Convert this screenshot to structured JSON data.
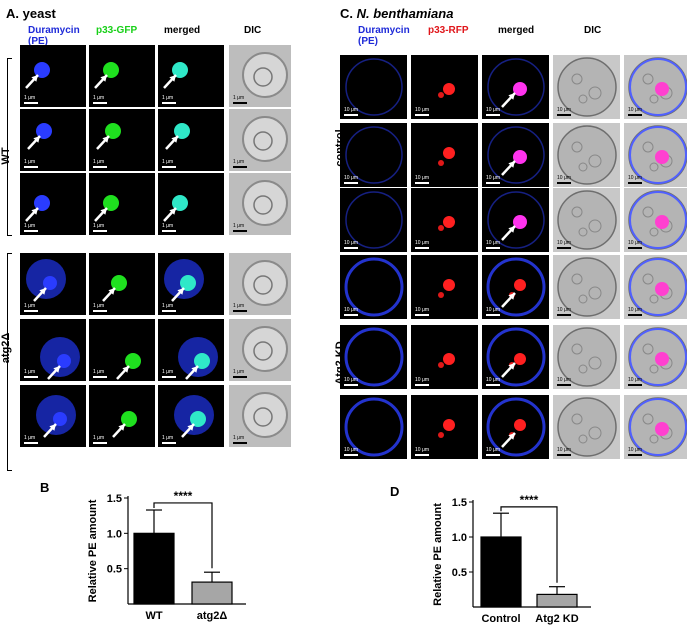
{
  "panel_a": {
    "letter": "A.",
    "title": "yeast",
    "columns": [
      "Duramycin (PE)",
      "p33-GFP",
      "merged",
      "DIC"
    ],
    "column_colors": [
      "#1f2bd8",
      "#18d018",
      "#000000",
      "#000000"
    ],
    "row_groups": [
      "WT",
      "atg2Δ"
    ],
    "scale_label": "1 μm"
  },
  "panel_c": {
    "letter": "C.",
    "title": "N. benthamiana",
    "columns": [
      "Duramycin (PE)",
      "p33-RFP",
      "merged",
      "DIC",
      ""
    ],
    "column_colors": [
      "#1f2bd8",
      "#e0161b",
      "#000000",
      "#000000",
      "#000000"
    ],
    "row_groups": [
      "control",
      "Atg2  KD"
    ],
    "scale_label": "10 μm"
  },
  "chart_data": [
    {
      "letter": "B",
      "type": "bar",
      "categories": [
        "WT",
        "atg2Δ"
      ],
      "values": [
        1.0,
        0.31
      ],
      "errors": [
        0.33,
        0.14
      ],
      "bar_colors": [
        "#000000",
        "#a6a6a6"
      ],
      "ylabel": "Relative PE amount",
      "ylim": [
        0,
        1.5
      ],
      "yticks": [
        "0.5",
        "1.0",
        "1.5"
      ],
      "significance": "****"
    },
    {
      "letter": "D",
      "type": "bar",
      "categories": [
        "Control",
        "Atg2 KD"
      ],
      "values": [
        1.0,
        0.18
      ],
      "errors": [
        0.34,
        0.11
      ],
      "bar_colors": [
        "#000000",
        "#a6a6a6"
      ],
      "ylabel": "Relative PE amount",
      "ylim": [
        0,
        1.5
      ],
      "yticks": [
        "0.5",
        "1.0",
        "1.5"
      ],
      "significance": "****"
    }
  ]
}
